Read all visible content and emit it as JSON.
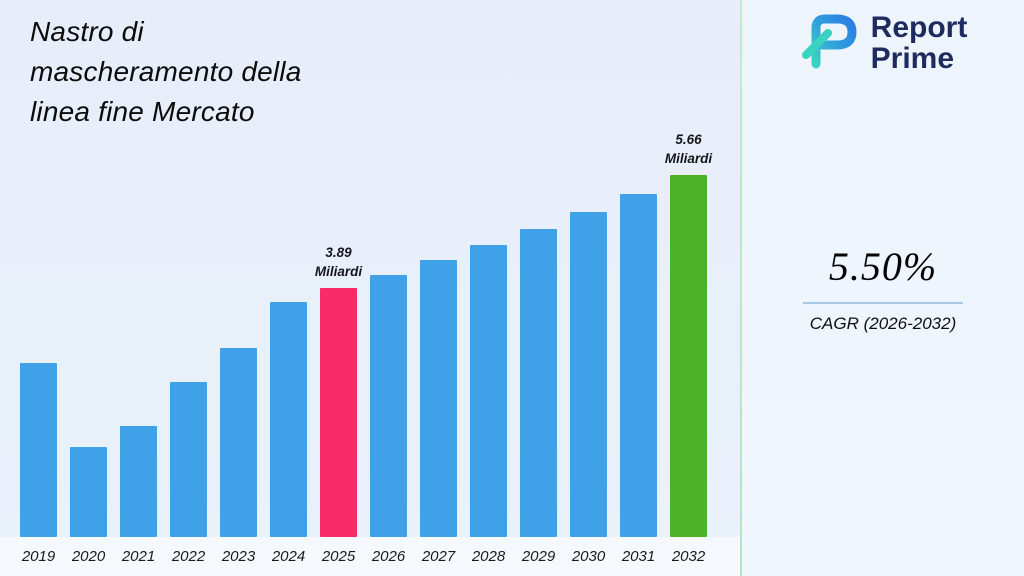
{
  "title": {
    "lines": [
      "Nastro di",
      "mascheramento della",
      "linea fine Mercato"
    ]
  },
  "brand": {
    "name_line1": "Report",
    "name_line2": "Prime",
    "text_color": "#1e2b5e",
    "logo_gradient": [
      "#3ad2c0",
      "#2e7de2"
    ]
  },
  "cagr": {
    "value": "5.50%",
    "label": "CAGR (2026-2032)",
    "underline_color": "#a9c7e6"
  },
  "chart_data": {
    "type": "bar",
    "title": "Nastro di mascheramento della linea fine Mercato",
    "categories": [
      "2019",
      "2020",
      "2021",
      "2022",
      "2023",
      "2024",
      "2025",
      "2026",
      "2027",
      "2028",
      "2029",
      "2030",
      "2031",
      "2032"
    ],
    "values": [
      2.72,
      1.41,
      1.73,
      2.43,
      2.96,
      3.68,
      3.89,
      4.1,
      4.33,
      4.57,
      4.82,
      5.08,
      5.36,
      5.66
    ],
    "unit": "Miliardi",
    "ylabel": "",
    "xlabel": "",
    "ylim": [
      0,
      5.8
    ],
    "grid": false,
    "legend": false,
    "annotations": [
      {
        "category": "2025",
        "lines": [
          "3.89",
          "Miliardi"
        ]
      },
      {
        "category": "2032",
        "lines": [
          "5.66",
          "Miliardi"
        ]
      }
    ],
    "bar_colors": {
      "default": "#3fa2e9",
      "2025": "#f62b68",
      "2032": "#4db226"
    }
  }
}
